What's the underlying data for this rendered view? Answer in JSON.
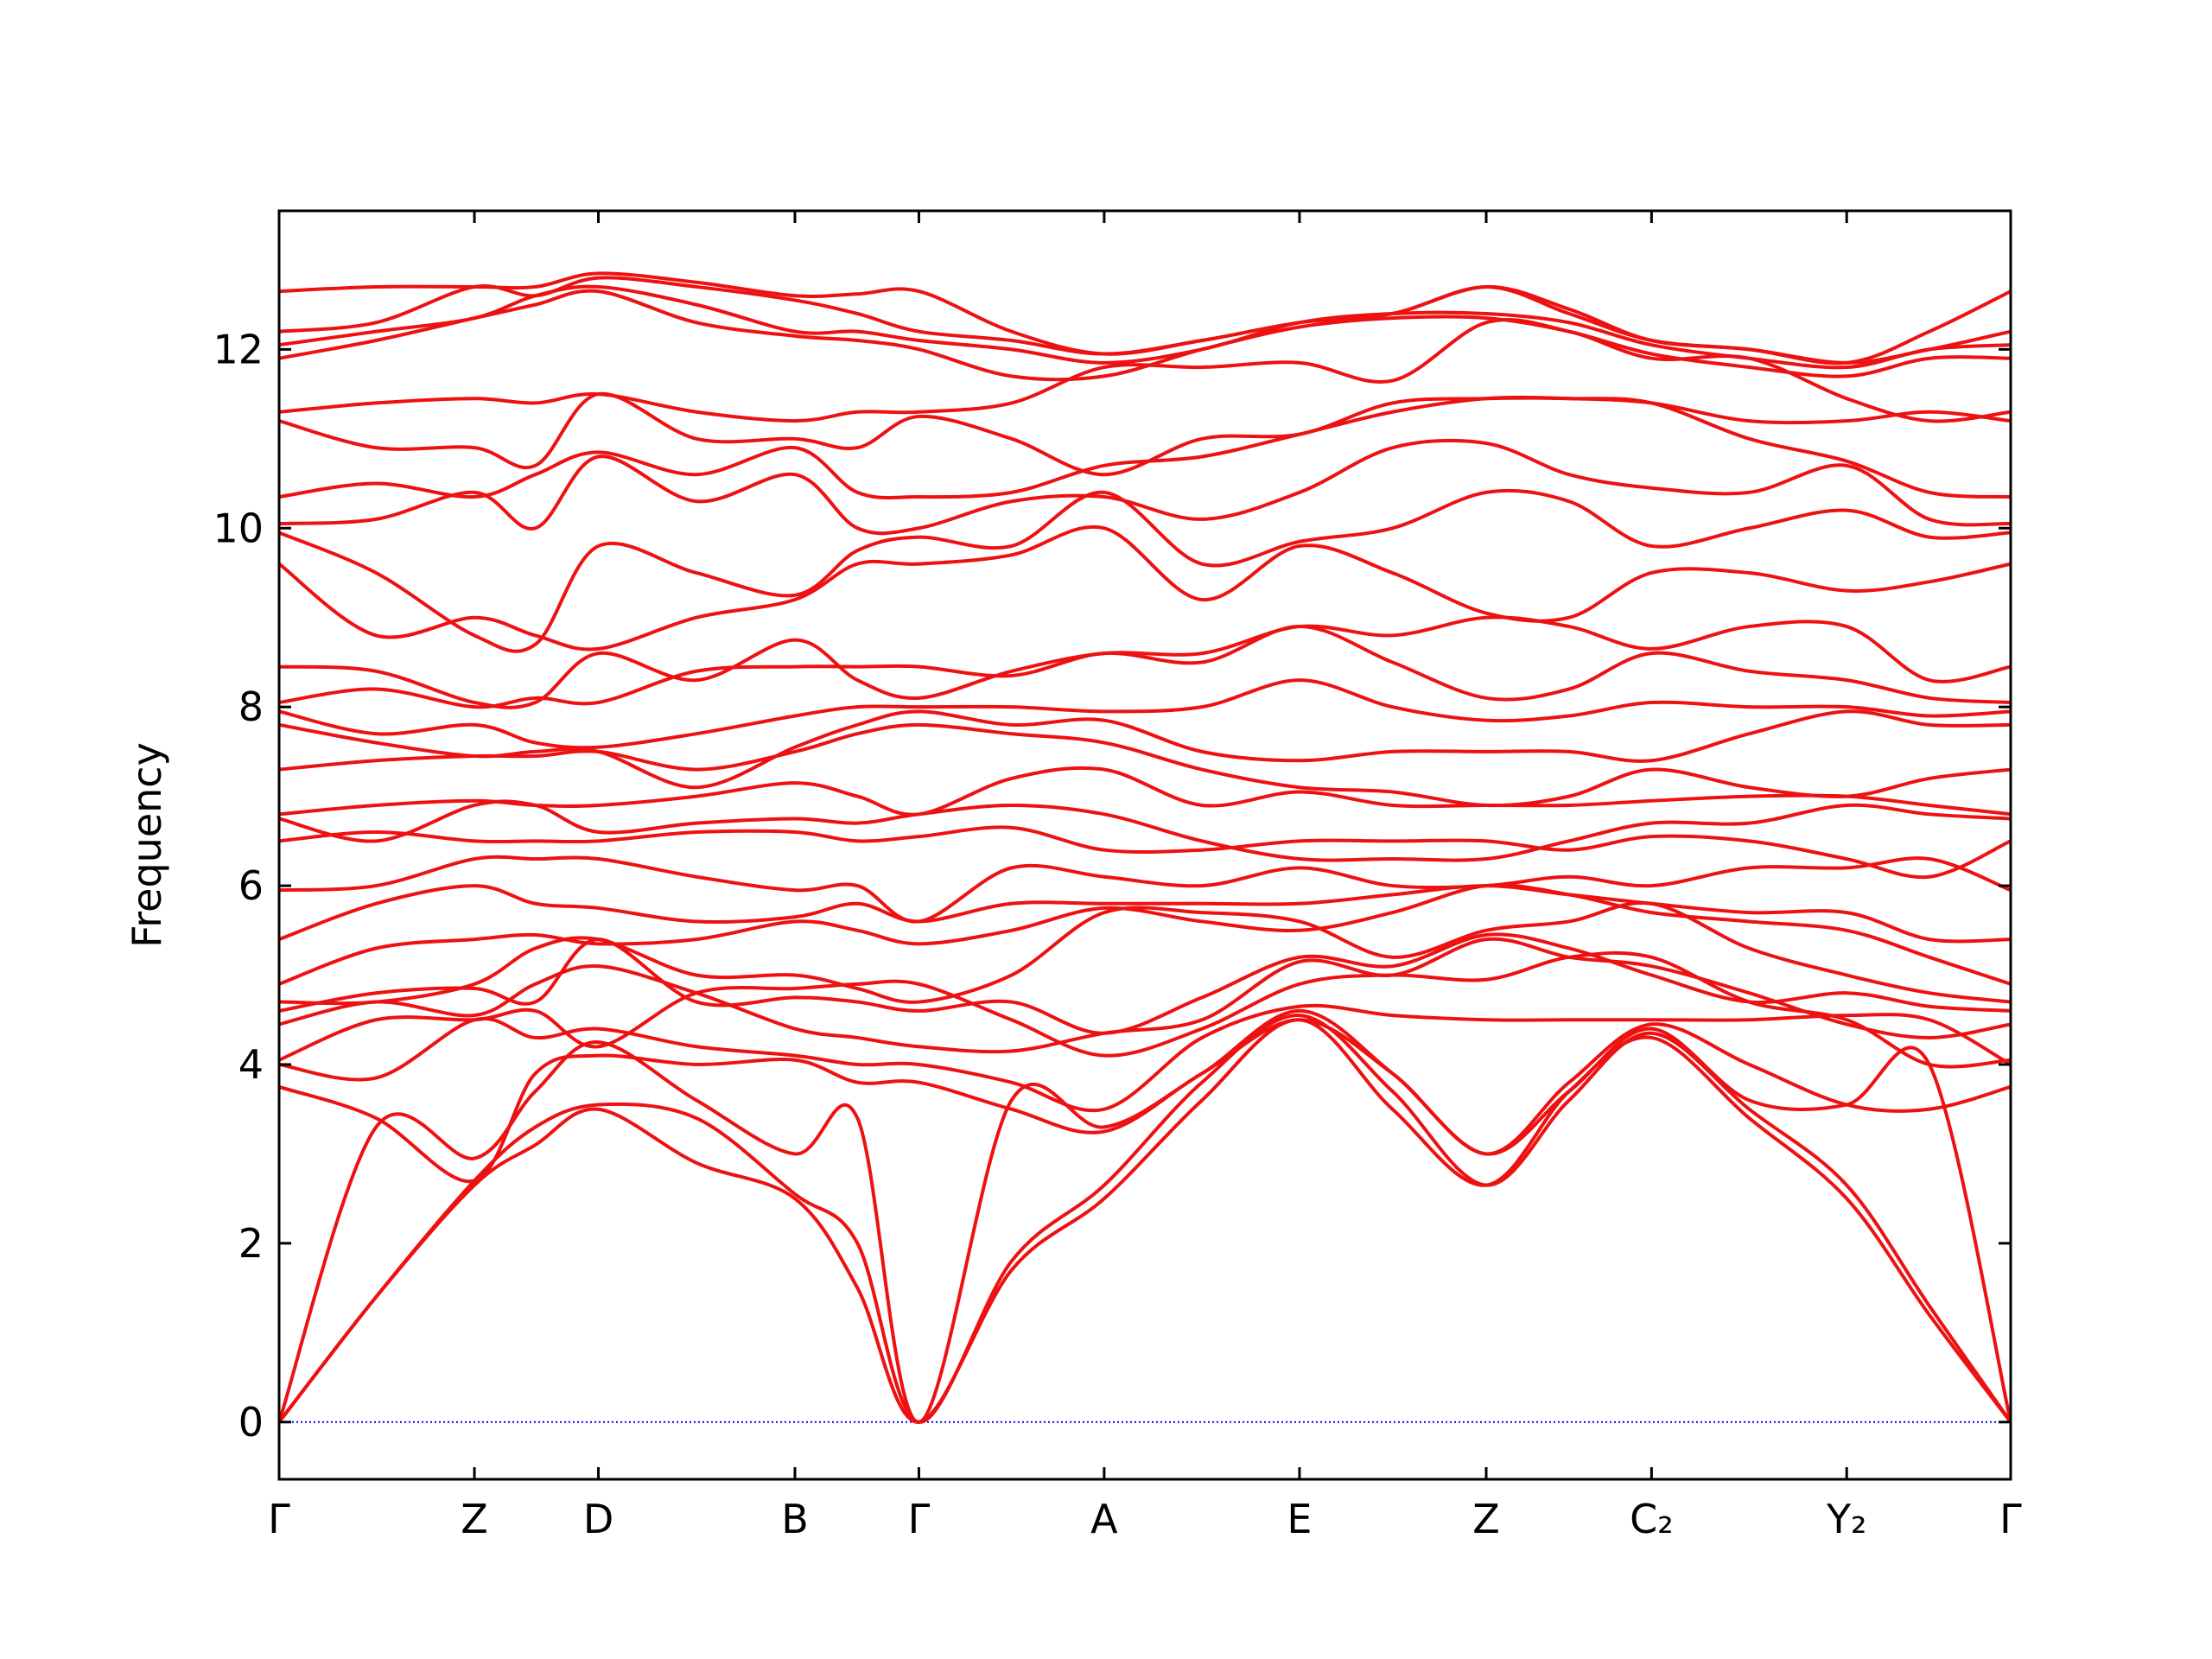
{
  "chart_data": {
    "type": "line",
    "y_label": "Frequency",
    "color": "#ee1111",
    "zero_line": true,
    "zero_line_color": "#0000ff",
    "xlim": [
      0,
      1
    ],
    "ylim": [
      -0.64,
      13.55
    ],
    "yticks": [
      0,
      2,
      4,
      6,
      8,
      10,
      12
    ],
    "xticks": [
      {
        "value": 0,
        "label": "Γ"
      },
      {
        "value": 0.1128,
        "label": "Z"
      },
      {
        "value": 0.1844,
        "label": "D"
      },
      {
        "value": 0.2979,
        "label": "B"
      },
      {
        "value": 0.3695,
        "label": "Γ"
      },
      {
        "value": 0.4765,
        "label": "A"
      },
      {
        "value": 0.5893,
        "label": "E"
      },
      {
        "value": 0.6971,
        "label": "Z"
      },
      {
        "value": 0.7926,
        "label": "C₂"
      },
      {
        "value": 0.9053,
        "label": "Y₂"
      },
      {
        "value": 1,
        "label": "Γ"
      }
    ],
    "x": [
      0,
      0.056,
      0.1128,
      0.148,
      0.1844,
      0.241,
      0.2979,
      0.334,
      0.3695,
      0.423,
      0.4765,
      0.533,
      0.5893,
      0.643,
      0.6971,
      0.745,
      0.7926,
      0.849,
      0.9053,
      0.953,
      1
    ],
    "series": [
      {
        "values": [
          0,
          1.4,
          2.65,
          3.1,
          3.5,
          2.9,
          2.5,
          1.5,
          0,
          1.7,
          2.5,
          3.6,
          4.5,
          3.5,
          2.65,
          3.7,
          4.3,
          3.4,
          2.5,
          1.2,
          0
        ]
      },
      {
        "values": [
          0,
          1.4,
          2.7,
          3.3,
          3.55,
          3.4,
          2.55,
          2.0,
          0,
          1.8,
          2.65,
          3.8,
          4.55,
          3.7,
          2.65,
          3.6,
          4.35,
          3.5,
          2.65,
          1.3,
          0
        ]
      },
      {
        "values": [
          0,
          3.3,
          2.95,
          3.7,
          4.25,
          3.6,
          3.0,
          3.4,
          0,
          3.6,
          3.3,
          3.9,
          4.6,
          3.9,
          3.0,
          3.7,
          4.4,
          3.6,
          3.55,
          4.0,
          0
        ]
      },
      {
        "values": [
          3.75,
          3.4,
          2.7,
          3.9,
          4.1,
          4.0,
          4.05,
          3.8,
          3.8,
          3.5,
          3.25,
          3.9,
          4.5,
          3.9,
          3.0,
          3.8,
          4.45,
          4.0,
          3.55,
          3.5,
          3.75
        ]
      },
      {
        "values": [
          4.0,
          3.85,
          4.5,
          4.3,
          4.4,
          4.2,
          4.1,
          4.0,
          4.0,
          3.8,
          3.5,
          4.3,
          4.65,
          4.55,
          4.5,
          4.5,
          4.5,
          4.5,
          4.55,
          4.5,
          4.0
        ]
      },
      {
        "values": [
          4.05,
          4.5,
          4.5,
          4.6,
          4.2,
          4.8,
          4.85,
          4.9,
          4.9,
          4.5,
          4.1,
          4.4,
          4.9,
          5.0,
          4.95,
          5.2,
          5.2,
          4.7,
          4.5,
          4.0,
          4.05
        ]
      },
      {
        "values": [
          4.45,
          4.7,
          4.55,
          4.9,
          5.1,
          4.8,
          4.4,
          4.3,
          4.2,
          4.15,
          4.35,
          4.5,
          5.15,
          5.0,
          5.4,
          5.2,
          5.1,
          4.8,
          4.45,
          4.3,
          4.45
        ]
      },
      {
        "values": [
          4.6,
          4.8,
          4.85,
          4.7,
          5.4,
          4.7,
          4.75,
          4.7,
          4.6,
          4.7,
          4.35,
          4.75,
          5.2,
          5.1,
          5.45,
          5.3,
          5.0,
          4.7,
          4.8,
          4.65,
          4.6
        ]
      },
      {
        "values": [
          4.7,
          4.7,
          4.9,
          5.3,
          5.4,
          5.0,
          5.0,
          4.85,
          4.7,
          5.0,
          5.7,
          5.7,
          5.6,
          5.2,
          5.5,
          5.6,
          5.8,
          5.3,
          5.0,
          4.8,
          4.7
        ]
      },
      {
        "values": [
          4.9,
          5.3,
          5.4,
          5.45,
          5.35,
          5.4,
          5.6,
          5.5,
          5.35,
          5.5,
          5.75,
          5.6,
          5.5,
          5.7,
          6.0,
          5.9,
          5.7,
          5.6,
          5.5,
          5.2,
          4.9
        ]
      },
      {
        "values": [
          5.4,
          5.8,
          6.0,
          5.8,
          5.75,
          5.6,
          5.65,
          5.8,
          5.6,
          5.8,
          5.8,
          5.8,
          5.8,
          5.9,
          6.0,
          5.9,
          5.8,
          5.7,
          5.7,
          5.4,
          5.4
        ]
      },
      {
        "values": [
          5.95,
          6.0,
          6.3,
          6.3,
          6.3,
          6.1,
          5.95,
          6.0,
          5.6,
          6.2,
          6.1,
          6.0,
          6.2,
          6.0,
          6.0,
          6.1,
          6.0,
          6.2,
          6.2,
          6.3,
          5.95
        ]
      },
      {
        "values": [
          6.5,
          6.6,
          6.5,
          6.5,
          6.5,
          6.6,
          6.6,
          6.5,
          6.55,
          6.65,
          6.4,
          6.4,
          6.5,
          6.5,
          6.5,
          6.4,
          6.55,
          6.5,
          6.3,
          6.1,
          6.5
        ]
      },
      {
        "values": [
          6.75,
          6.5,
          6.9,
          6.9,
          6.6,
          6.7,
          6.75,
          6.7,
          6.8,
          6.9,
          6.8,
          6.5,
          6.3,
          6.3,
          6.3,
          6.5,
          6.7,
          6.7,
          6.9,
          6.8,
          6.75
        ]
      },
      {
        "values": [
          6.8,
          6.9,
          6.95,
          6.9,
          6.9,
          7.0,
          7.15,
          7.0,
          6.8,
          7.2,
          7.3,
          6.9,
          7.05,
          6.9,
          6.9,
          6.9,
          6.95,
          7.0,
          7.0,
          6.9,
          6.8
        ]
      },
      {
        "values": [
          7.3,
          7.4,
          7.45,
          7.45,
          7.5,
          7.3,
          7.5,
          7.7,
          7.8,
          7.7,
          7.6,
          7.3,
          7.1,
          7.05,
          6.9,
          7.0,
          7.3,
          7.1,
          7.0,
          7.2,
          7.3
        ]
      },
      {
        "values": [
          7.8,
          7.6,
          7.45,
          7.5,
          7.5,
          7.1,
          7.55,
          7.8,
          7.95,
          7.8,
          7.85,
          7.5,
          7.4,
          7.5,
          7.5,
          7.5,
          7.4,
          7.7,
          7.95,
          7.8,
          7.8
        ]
      },
      {
        "values": [
          7.95,
          7.7,
          7.8,
          7.6,
          7.55,
          7.7,
          7.9,
          8.0,
          8.0,
          8.0,
          7.95,
          8.0,
          8.3,
          8.0,
          7.85,
          7.9,
          8.05,
          8.0,
          8.0,
          7.9,
          7.95
        ]
      },
      {
        "values": [
          8.05,
          8.2,
          8.0,
          8.1,
          8.05,
          8.4,
          8.45,
          8.45,
          8.45,
          8.35,
          8.6,
          8.5,
          8.9,
          8.5,
          8.1,
          8.2,
          8.6,
          8.4,
          8.3,
          8.1,
          8.05
        ]
      },
      {
        "values": [
          8.45,
          8.4,
          8.05,
          8.05,
          8.6,
          8.3,
          8.75,
          8.3,
          8.1,
          8.4,
          8.6,
          8.6,
          8.9,
          8.8,
          9.0,
          8.9,
          8.65,
          8.9,
          8.9,
          8.3,
          8.45
        ]
      },
      {
        "values": [
          9.6,
          8.8,
          9.0,
          8.8,
          8.65,
          9.0,
          9.2,
          9.6,
          9.6,
          9.7,
          10.0,
          9.2,
          9.8,
          9.5,
          9.05,
          9.0,
          9.5,
          9.5,
          9.3,
          9.4,
          9.6
        ]
      },
      {
        "values": [
          9.95,
          9.5,
          8.8,
          8.7,
          9.8,
          9.5,
          9.25,
          9.75,
          9.9,
          9.8,
          10.4,
          9.6,
          9.85,
          10.0,
          10.4,
          10.3,
          9.8,
          10.0,
          10.2,
          9.9,
          9.95
        ]
      },
      {
        "values": [
          10.05,
          10.1,
          10.4,
          10.0,
          10.8,
          10.3,
          10.6,
          10.0,
          10.0,
          10.3,
          10.35,
          10.1,
          10.4,
          10.9,
          10.95,
          10.6,
          10.45,
          10.4,
          10.7,
          10.1,
          10.05
        ]
      },
      {
        "values": [
          10.35,
          10.5,
          10.35,
          10.6,
          10.85,
          10.6,
          10.9,
          10.4,
          10.35,
          10.4,
          10.7,
          10.8,
          11.05,
          11.3,
          11.45,
          11.45,
          11.4,
          11.0,
          10.75,
          10.4,
          10.35
        ]
      },
      {
        "values": [
          11.2,
          10.9,
          10.9,
          10.7,
          11.5,
          11.0,
          11.0,
          10.9,
          11.25,
          11.0,
          10.6,
          11.0,
          11.05,
          11.4,
          11.45,
          11.45,
          11.4,
          11.2,
          11.2,
          11.3,
          11.2
        ]
      },
      {
        "values": [
          11.3,
          11.4,
          11.45,
          11.4,
          11.5,
          11.3,
          11.2,
          11.3,
          11.3,
          11.4,
          11.8,
          11.8,
          11.85,
          11.65,
          12.3,
          12.2,
          11.9,
          11.9,
          11.45,
          11.2,
          11.3
        ]
      },
      {
        "values": [
          11.9,
          12.1,
          12.35,
          12.5,
          12.65,
          12.3,
          12.15,
          12.1,
          12.0,
          11.7,
          11.7,
          12.0,
          12.25,
          12.35,
          12.35,
          12.2,
          11.95,
          11.8,
          11.7,
          11.9,
          11.9
        ]
      },
      {
        "values": [
          12.05,
          12.2,
          12.35,
          12.6,
          12.7,
          12.5,
          12.2,
          12.2,
          12.1,
          12.0,
          11.85,
          12.0,
          12.3,
          12.4,
          12.4,
          12.3,
          12.05,
          11.9,
          11.8,
          12.0,
          12.05
        ]
      },
      {
        "values": [
          12.2,
          12.3,
          12.7,
          12.6,
          12.8,
          12.7,
          12.55,
          12.4,
          12.2,
          12.1,
          11.95,
          12.1,
          12.3,
          12.4,
          12.7,
          12.4,
          12.1,
          12.0,
          11.85,
          12.0,
          12.2
        ]
      },
      {
        "values": [
          12.65,
          12.7,
          12.7,
          12.7,
          12.85,
          12.75,
          12.6,
          12.62,
          12.65,
          12.2,
          11.95,
          12.1,
          12.3,
          12.4,
          12.7,
          12.45,
          12.1,
          12.0,
          11.85,
          12.2,
          12.65
        ]
      }
    ]
  }
}
